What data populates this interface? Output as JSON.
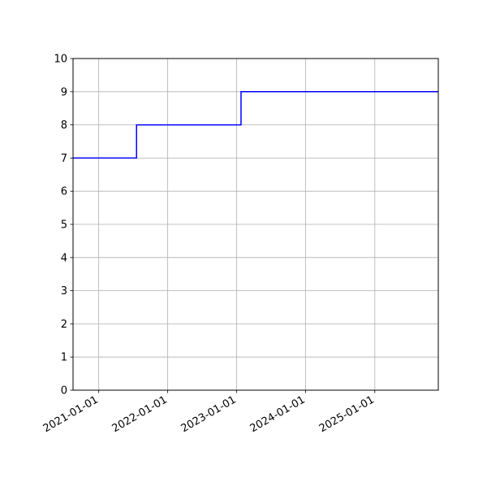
{
  "chart_data": {
    "type": "line",
    "drawstyle": "steps-post",
    "title": "",
    "xlabel": "",
    "ylabel": "",
    "x_type": "date",
    "xlim": [
      "2020-08-18",
      "2025-12-03"
    ],
    "ylim": [
      0,
      10
    ],
    "grid": true,
    "x_ticks": [
      "2021-01-01",
      "2022-01-01",
      "2023-01-01",
      "2024-01-01",
      "2025-01-01"
    ],
    "y_ticks": [
      0,
      1,
      2,
      3,
      4,
      5,
      6,
      7,
      8,
      9,
      10
    ],
    "series": [
      {
        "color": "#0000ff",
        "x": [
          "2020-08-18",
          "2021-07-20",
          "2023-01-24",
          "2025-12-03"
        ],
        "y": [
          7,
          8,
          9,
          9
        ]
      }
    ]
  }
}
